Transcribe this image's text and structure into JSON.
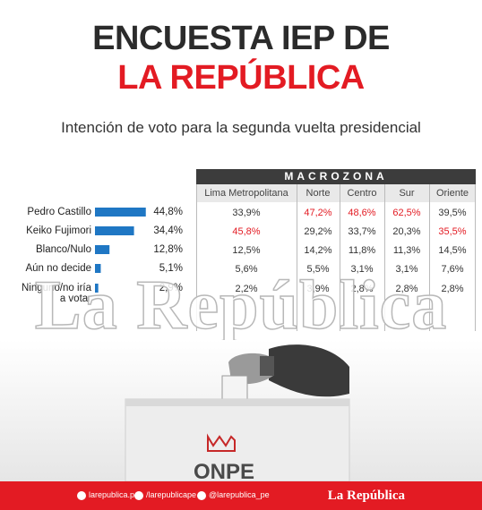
{
  "header": {
    "title_line1": "ENCUESTA IEP DE",
    "title_line2": "LA REPÚBLICA",
    "subtitle": "Intención de voto para la segunda vuelta presidencial"
  },
  "table": {
    "group_header": "MACROZONA",
    "regions": [
      "Lima Metropolitana",
      "Norte",
      "Centro",
      "Sur",
      "Oriente"
    ],
    "rows": [
      {
        "label": "Pedro Castillo",
        "total": "44,8%",
        "cells": [
          "33,9%",
          "47,2%",
          "48,6%",
          "62,5%",
          "39,5%"
        ]
      },
      {
        "label": "Keiko Fujimori",
        "total": "34,4%",
        "cells": [
          "45,8%",
          "29,2%",
          "33,7%",
          "20,3%",
          "35,5%"
        ]
      },
      {
        "label": "Blanco/Nulo",
        "total": "12,8%",
        "cells": [
          "12,5%",
          "14,2%",
          "11,8%",
          "11,3%",
          "14,5%"
        ]
      },
      {
        "label": "Aún no decide",
        "total": "5,1%",
        "cells": [
          "5,6%",
          "5,5%",
          "3,1%",
          "3,1%",
          "7,6%"
        ]
      },
      {
        "label": "Ninguno/no iría a votar",
        "total": "2,9%",
        "cells": [
          "2,2%",
          "3,9%",
          "2,8%",
          "2,8%",
          "2,8%"
        ]
      }
    ]
  },
  "chart_data": {
    "type": "bar",
    "orientation": "horizontal",
    "categories": [
      "Pedro Castillo",
      "Keiko Fujimori",
      "Blanco/Nulo",
      "Aún no decide",
      "Ninguno/no iría a votar"
    ],
    "values": [
      44.8,
      34.4,
      12.8,
      5.1,
      2.9
    ],
    "xlim": [
      0,
      45
    ],
    "bar_color": "#1f77c4",
    "highlight_color": "#e31b23"
  },
  "watermark": "La República",
  "photo": {
    "box_label": "ONPE"
  },
  "footer": {
    "instagram": "larepublica.pe",
    "facebook": "/larepublicape",
    "twitter": "@larepublica_pe",
    "brand": "La República"
  }
}
